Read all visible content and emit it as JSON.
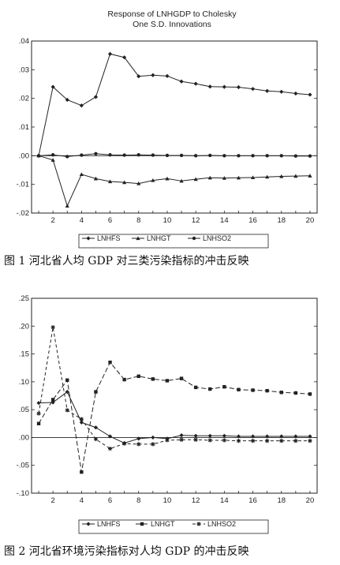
{
  "chart_data": [
    {
      "type": "line",
      "title": "Response of LNHGDP to Cholesky",
      "subtitle": "One S.D. Innovations",
      "x": [
        1,
        2,
        3,
        4,
        5,
        6,
        7,
        8,
        9,
        10,
        11,
        12,
        13,
        14,
        15,
        16,
        17,
        18,
        19,
        20
      ],
      "xticks": [
        "2",
        "4",
        "6",
        "8",
        "10",
        "12",
        "14",
        "16",
        "18",
        "20"
      ],
      "xtick_values": [
        2,
        4,
        6,
        8,
        10,
        12,
        14,
        16,
        18,
        20
      ],
      "yticks": [
        ".04",
        ".03",
        ".02",
        ".01",
        ".00",
        "-.01",
        "-.02"
      ],
      "ytick_values": [
        0.04,
        0.03,
        0.02,
        0.01,
        0.0,
        -0.01,
        -0.02
      ],
      "ylim": [
        -0.02,
        0.04
      ],
      "xlim": [
        0.5,
        20.5
      ],
      "series": [
        {
          "name": "LNHFS",
          "marker": "diamond",
          "values": [
            0,
            0.024,
            0.0195,
            0.0175,
            0.0205,
            0.0355,
            0.0343,
            0.0277,
            0.0281,
            0.0278,
            0.0259,
            0.0251,
            0.0241,
            0.024,
            0.0239,
            0.0233,
            0.0226,
            0.0223,
            0.0217,
            0.0213
          ]
        },
        {
          "name": "LNHGT",
          "marker": "triangle",
          "values": [
            0,
            -0.0015,
            -0.0175,
            -0.0065,
            -0.008,
            -0.009,
            -0.0093,
            -0.0097,
            -0.0086,
            -0.008,
            -0.0088,
            -0.0082,
            -0.0077,
            -0.0078,
            -0.0077,
            -0.0076,
            -0.0074,
            -0.0072,
            -0.0071,
            -0.007
          ]
        },
        {
          "name": "LNHSO2",
          "marker": "circle",
          "values": [
            0,
            0.0003,
            -0.0003,
            0.0002,
            0.0007,
            0.0003,
            0.0002,
            0.0003,
            0.0002,
            0.0001,
            0.0001,
            0,
            0.0001,
            0,
            0,
            0,
            0,
            0,
            -0.0001,
            -0.0001
          ]
        }
      ],
      "legend": [
        "LNHFS",
        "LNHGT",
        "LNHSO2"
      ],
      "legend_position": "bottom",
      "grid": false,
      "caption": "图 1   河北省人均 GDP 对三类污染指标的冲击反映"
    },
    {
      "type": "line",
      "title": "",
      "x": [
        1,
        2,
        3,
        4,
        5,
        6,
        7,
        8,
        9,
        10,
        11,
        12,
        13,
        14,
        15,
        16,
        17,
        18,
        19,
        20
      ],
      "xticks": [
        "2",
        "4",
        "6",
        "8",
        "10",
        "12",
        "14",
        "16",
        "18",
        "20"
      ],
      "xtick_values": [
        2,
        4,
        6,
        8,
        10,
        12,
        14,
        16,
        18,
        20
      ],
      "yticks": [
        ".25",
        ".20",
        ".15",
        ".10",
        ".05",
        ".00",
        "-.05",
        "-.10"
      ],
      "ytick_values": [
        0.25,
        0.2,
        0.15,
        0.1,
        0.05,
        0.0,
        -0.05,
        -0.1
      ],
      "ylim": [
        -0.1,
        0.25
      ],
      "xlim": [
        0.5,
        20.5
      ],
      "series": [
        {
          "name": "LNHFS",
          "marker": "diamond",
          "values": [
            0.062,
            0.063,
            0.082,
            0.027,
            0.018,
            0.002,
            -0.01,
            -0.002,
            0,
            -0.002,
            0.004,
            0.003,
            0.003,
            0.003,
            0.002,
            0.002,
            0.002,
            0.002,
            0.002,
            0.002
          ]
        },
        {
          "name": "LNHGT",
          "marker": "square",
          "values": [
            0.025,
            0.068,
            0.103,
            -0.062,
            0.082,
            0.135,
            0.104,
            0.11,
            0.105,
            0.102,
            0.106,
            0.09,
            0.087,
            0.091,
            0.086,
            0.085,
            0.084,
            0.081,
            0.08,
            0.078
          ]
        },
        {
          "name": "LNHSO2",
          "marker": "star",
          "values": [
            0.043,
            0.198,
            0.049,
            0.033,
            -0.003,
            -0.02,
            -0.011,
            -0.012,
            -0.012,
            -0.005,
            -0.004,
            -0.004,
            -0.005,
            -0.005,
            -0.006,
            -0.006,
            -0.006,
            -0.006,
            -0.006,
            -0.006
          ]
        }
      ],
      "legend": [
        "LNHFS",
        "LNHGT",
        "LNHSO2"
      ],
      "legend_position": "bottom",
      "grid": false,
      "caption": "图 2  河北省环境污染指标对人均 GDP 的冲击反映"
    }
  ]
}
